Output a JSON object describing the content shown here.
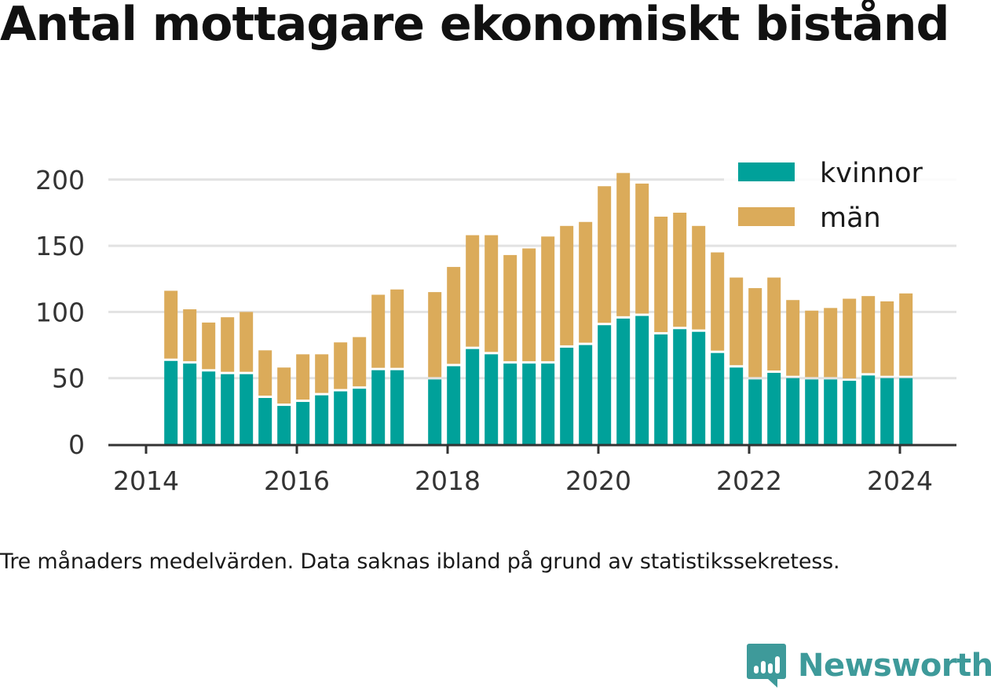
{
  "title": "Antal mottagare ekonomiskt bistånd",
  "caption": "Tre månaders medelvärden. Data saknas ibland på grund av statistikssekretess.",
  "brand": {
    "name": "Newsworthy",
    "icon": "bar-chart-speech-bubble-icon",
    "color": "#3e9a9a"
  },
  "chart_data": {
    "type": "bar",
    "stacked": true,
    "title": "",
    "xlabel": "",
    "ylabel": "",
    "ylim": [
      0,
      210
    ],
    "y_ticks": [
      0,
      50,
      100,
      150,
      200
    ],
    "x_ticks": [
      2014,
      2016,
      2018,
      2020,
      2022,
      2024
    ],
    "x_range": [
      2013.5,
      2024.75
    ],
    "grid": true,
    "legend_position": "top-right",
    "x": [
      2014.33,
      2014.58,
      2014.83,
      2015.08,
      2015.33,
      2015.58,
      2015.83,
      2016.08,
      2016.33,
      2016.58,
      2016.83,
      2017.08,
      2017.33,
      2017.83,
      2018.08,
      2018.33,
      2018.58,
      2018.83,
      2019.08,
      2019.33,
      2019.58,
      2019.83,
      2020.08,
      2020.33,
      2020.58,
      2020.83,
      2021.08,
      2021.33,
      2021.58,
      2021.83,
      2022.08,
      2022.33,
      2022.58,
      2022.83,
      2023.08,
      2023.33,
      2023.58,
      2023.83,
      2024.08
    ],
    "series": [
      {
        "name": "kvinnor",
        "color": "#00a19a",
        "values": [
          63,
          61,
          55,
          53,
          53,
          35,
          29,
          32,
          37,
          40,
          42,
          56,
          56,
          49,
          59,
          72,
          68,
          61,
          61,
          61,
          73,
          75,
          90,
          95,
          97,
          83,
          87,
          85,
          69,
          58,
          49,
          54,
          50,
          49,
          49,
          48,
          52,
          50,
          50
        ]
      },
      {
        "name": "män",
        "color": "#dbab5a",
        "values": [
          53,
          41,
          37,
          43,
          47,
          36,
          29,
          36,
          31,
          37,
          39,
          57,
          61,
          66,
          75,
          86,
          90,
          82,
          87,
          96,
          92,
          93,
          105,
          110,
          100,
          89,
          88,
          80,
          76,
          68,
          69,
          72,
          59,
          52,
          54,
          62,
          60,
          58,
          64
        ]
      }
    ]
  }
}
